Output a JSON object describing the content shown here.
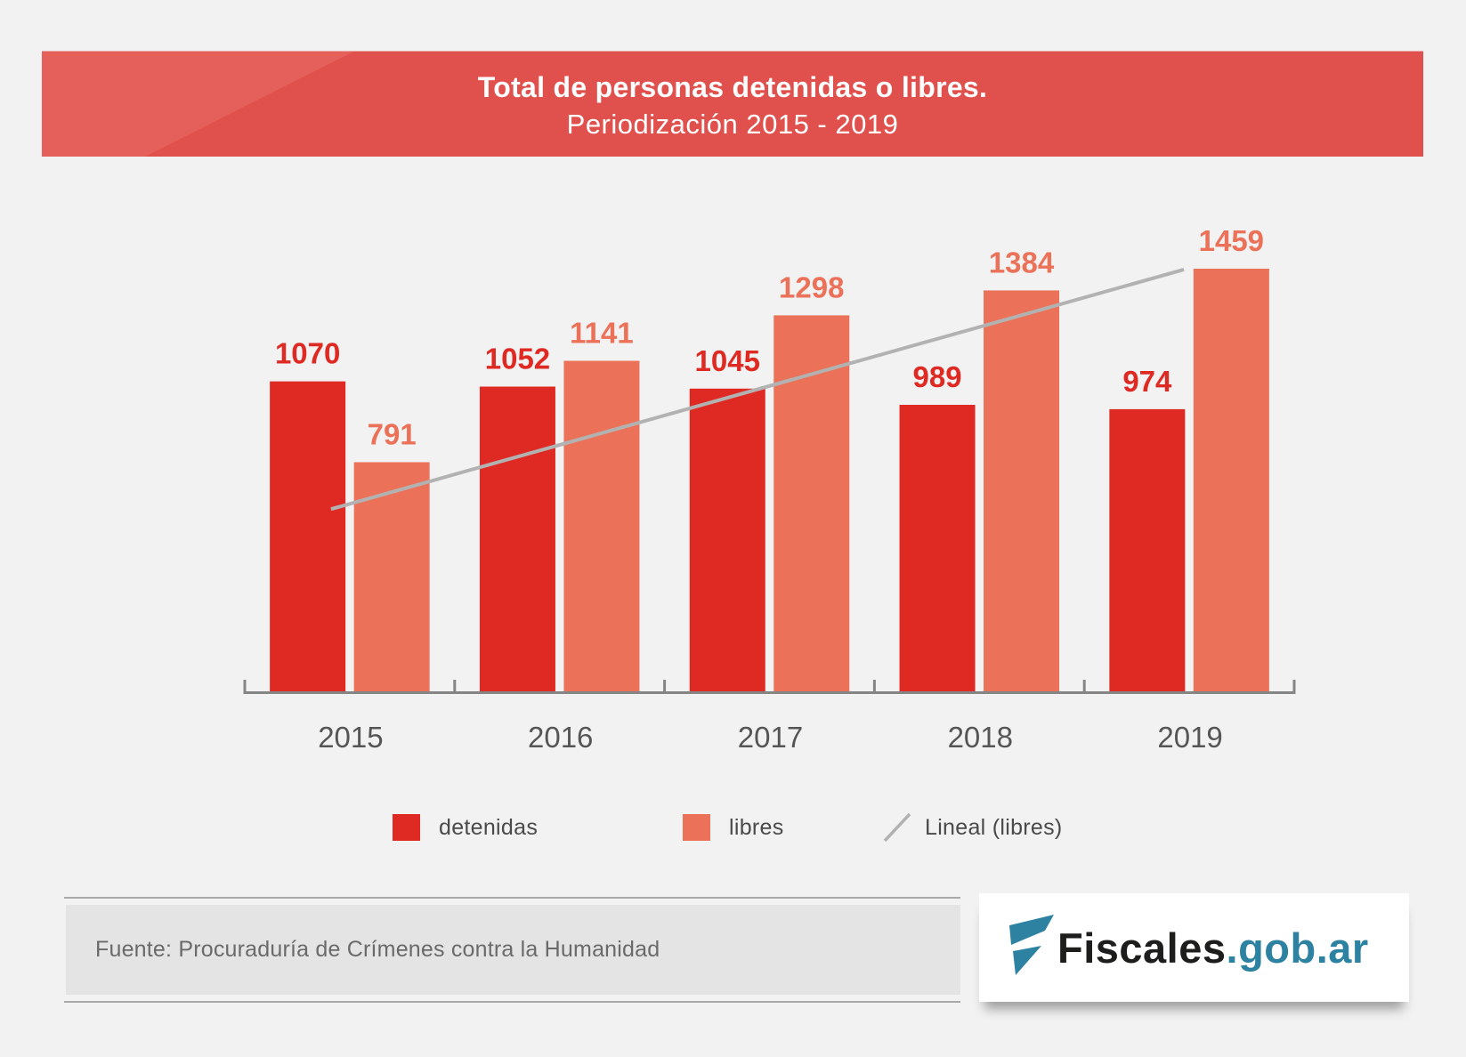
{
  "header": {
    "title": "Total de personas detenidas o libres.",
    "subtitle": "Periodización 2015 - 2019"
  },
  "chart_data": {
    "type": "bar",
    "title": "Total de personas detenidas o libres.",
    "subtitle": "Periodización 2015 - 2019",
    "xlabel": "",
    "ylabel": "",
    "categories": [
      "2015",
      "2016",
      "2017",
      "2018",
      "2019"
    ],
    "series": [
      {
        "name": "detenidas",
        "color": "#df2a24",
        "values": [
          1070,
          1052,
          1045,
          989,
          974
        ]
      },
      {
        "name": "libres",
        "color": "#eb7259",
        "values": [
          791,
          1141,
          1298,
          1384,
          1459
        ]
      }
    ],
    "trendline": {
      "name": "Lineal (libres)",
      "type": "linear",
      "of_series": "libres",
      "color": "#b2b2b2",
      "start": {
        "category": "2015",
        "value": 629
      },
      "end": {
        "category": "2019",
        "value": 1456
      }
    },
    "ylim": [
      0,
      1459
    ],
    "y_axis_visible": false,
    "grid": false,
    "data_labels": true,
    "legend_position": "bottom"
  },
  "legend": {
    "items": [
      {
        "label": "detenidas",
        "color": "#df2a24",
        "kind": "swatch"
      },
      {
        "label": "libres",
        "color": "#eb7259",
        "kind": "swatch"
      },
      {
        "label": "Lineal (libres)",
        "color": "#b2b2b2",
        "kind": "line"
      }
    ]
  },
  "footer": {
    "source": "Fuente: Procuraduría de Crímenes contra la Humanidad",
    "logo": {
      "main": "Fiscales",
      "domain": ".gob.ar",
      "icon": "fiscales-f-icon",
      "brand_color": "#2e82a1"
    }
  }
}
